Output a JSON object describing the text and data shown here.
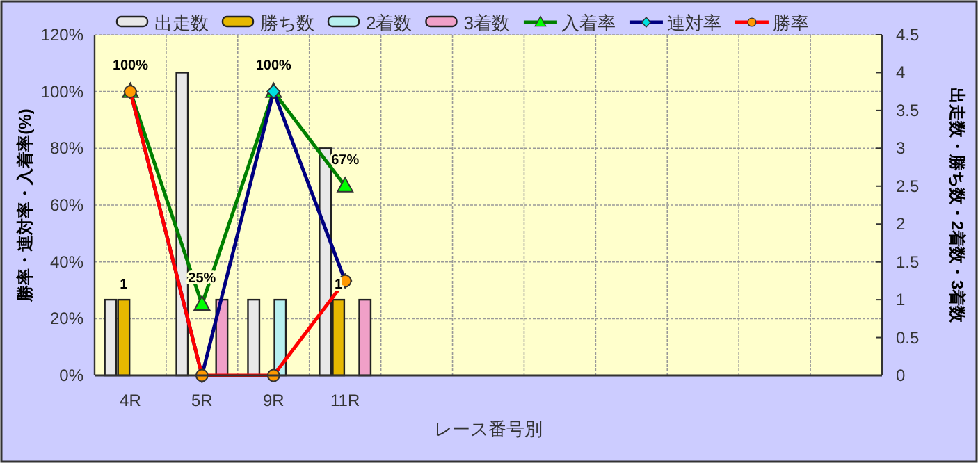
{
  "chart_data": {
    "type": "bar",
    "categories": [
      "4R",
      "5R",
      "9R",
      "11R",
      null,
      null,
      null,
      null,
      null,
      null,
      null
    ],
    "xlabel": "レース番号別",
    "ylabel": "勝率・連対率・入着率(%)",
    "y2label": "出走数・勝ち数・2着数・3着数",
    "ylim": [
      0,
      120
    ],
    "yticks": [
      {
        "value": 0,
        "label": "0%"
      },
      {
        "value": 20,
        "label": "20%"
      },
      {
        "value": 40,
        "label": "40%"
      },
      {
        "value": 60,
        "label": "60%"
      },
      {
        "value": 80,
        "label": "80%"
      },
      {
        "value": 100,
        "label": "100%"
      },
      {
        "value": 120,
        "label": "120%"
      }
    ],
    "y2lim": [
      0,
      4.5
    ],
    "y2ticks": [
      0,
      0.5,
      1,
      1.5,
      2,
      2.5,
      3,
      3.5,
      4,
      4.5
    ],
    "grid": true,
    "legend": "top",
    "series": [
      {
        "name": "出走数",
        "axis": "y2",
        "color": "#e8e8e8",
        "values": [
          1,
          4,
          1,
          3,
          null,
          null,
          null,
          null,
          null,
          null,
          null
        ]
      },
      {
        "name": "勝ち数",
        "axis": "y2",
        "color": "#e6b800",
        "values": [
          1,
          0,
          0,
          1,
          null,
          null,
          null,
          null,
          null,
          null,
          null
        ],
        "value_labels": [
          "1",
          null,
          null,
          "1",
          null,
          null,
          null,
          null,
          null,
          null,
          null
        ]
      },
      {
        "name": "2着数",
        "axis": "y2",
        "color": "#b8f0f0",
        "values": [
          0,
          0,
          1,
          0,
          null,
          null,
          null,
          null,
          null,
          null,
          null
        ]
      },
      {
        "name": "3着数",
        "axis": "y2",
        "color": "#f0a0c8",
        "values": [
          0,
          1,
          0,
          1,
          null,
          null,
          null,
          null,
          null,
          null,
          null
        ]
      },
      {
        "name": "入着率",
        "type": "line",
        "axis": "y",
        "color": "#008000",
        "marker": "triangle",
        "colors": [
          "#00ff00",
          "#00ff00",
          "#00ff00",
          "#00ff00",
          null,
          null,
          null,
          null,
          null,
          null,
          null
        ],
        "values": [
          100,
          25,
          100,
          66.7,
          null,
          null,
          null,
          null,
          null,
          null,
          null
        ],
        "value_labels": [
          "100%",
          "25%",
          "100%",
          "67%",
          null,
          null,
          null,
          null,
          null,
          null,
          null
        ]
      },
      {
        "name": "連対率",
        "type": "line",
        "axis": "y",
        "color": "#000080",
        "marker": "diamond",
        "colors": [
          "#00e0e0",
          "#00e0e0",
          "#00e0e0",
          "#00e0e0",
          null,
          null,
          null,
          null,
          null,
          null,
          null
        ],
        "values": [
          100,
          0,
          100,
          33.3,
          null,
          null,
          null,
          null,
          null,
          null,
          null
        ]
      },
      {
        "name": "勝率",
        "type": "line",
        "axis": "y",
        "color": "#ff0000",
        "marker": "circle",
        "colors": [
          "#ff9900",
          "#ff9900",
          "#ff9900",
          "#ff9900",
          null,
          null,
          null,
          null,
          null,
          null,
          null
        ],
        "values": [
          100,
          0,
          0,
          33.3,
          null,
          null,
          null,
          null,
          null,
          null,
          null
        ]
      }
    ]
  }
}
